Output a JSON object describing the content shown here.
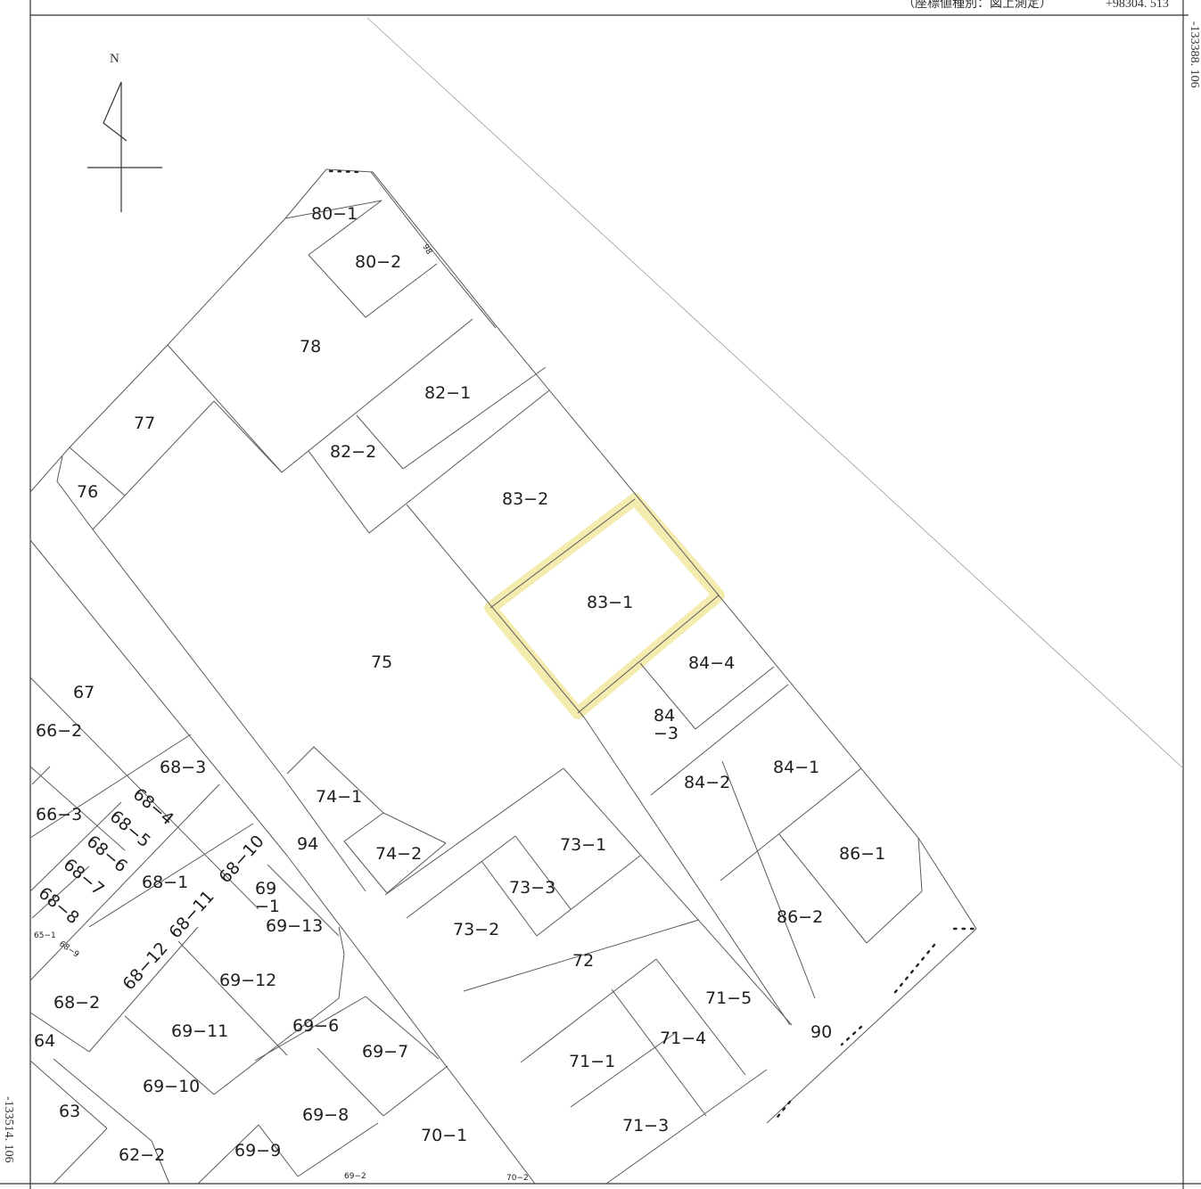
{
  "header": {
    "coordinate_type_note": "（座標値種別：図上測定）",
    "top_coordinate": "+98304. 513",
    "right_coordinate": "-133388. 106",
    "left_coordinate": "-133514. 106"
  },
  "north_arrow": {
    "label": "N"
  },
  "highlight": {
    "parcel": "83-1",
    "color": "#f3eaa6"
  },
  "parcels": {
    "p80_1": "80−1",
    "p80_2": "80−2",
    "p78": "78",
    "p82_1": "82−1",
    "p82_2": "82−2",
    "p77": "77",
    "p76": "76",
    "p83_2": "83−2",
    "p83_1": "83−1",
    "p75": "75",
    "p84_4": "84−4",
    "p84_3a": "84",
    "p84_3b": "−3",
    "p84_2": "84−2",
    "p84_1": "84−1",
    "p86_1": "86−1",
    "p86_2": "86−2",
    "p67": "67",
    "p66_2": "66−2",
    "p66_3": "66−3",
    "p68_3": "68−3",
    "p68_4": "68−4",
    "p68_5": "68−5",
    "p68_6": "68−6",
    "p68_7": "68−7",
    "p68_8": "68−8",
    "p68_1": "68−1",
    "p68_10": "68−10",
    "p68_11": "68−11",
    "p68_12": "68−12",
    "p68_9": "68−9",
    "p65_1": "65−1",
    "p68_2": "68−2",
    "p74_1": "74−1",
    "p74_2": "74−2",
    "p94": "94",
    "p69_1a": "69",
    "p69_1b": "−1",
    "p69_13": "69−13",
    "p69_12": "69−12",
    "p69_11": "69−11",
    "p69_10": "69−10",
    "p69_6": "69−6",
    "p69_7": "69−7",
    "p69_8": "69−8",
    "p69_9": "69−9",
    "p69_2": "69−2",
    "p64": "64",
    "p63": "63",
    "p62_2": "62−2",
    "p73_1": "73−1",
    "p73_3": "73−3",
    "p73_2": "73−2",
    "p72": "72",
    "p71_5": "71−5",
    "p71_4": "71−4",
    "p71_1": "71−1",
    "p71_3": "71−3",
    "p70_1": "70−1",
    "p70_2": "70−2",
    "p90": "90",
    "p98": "98"
  }
}
